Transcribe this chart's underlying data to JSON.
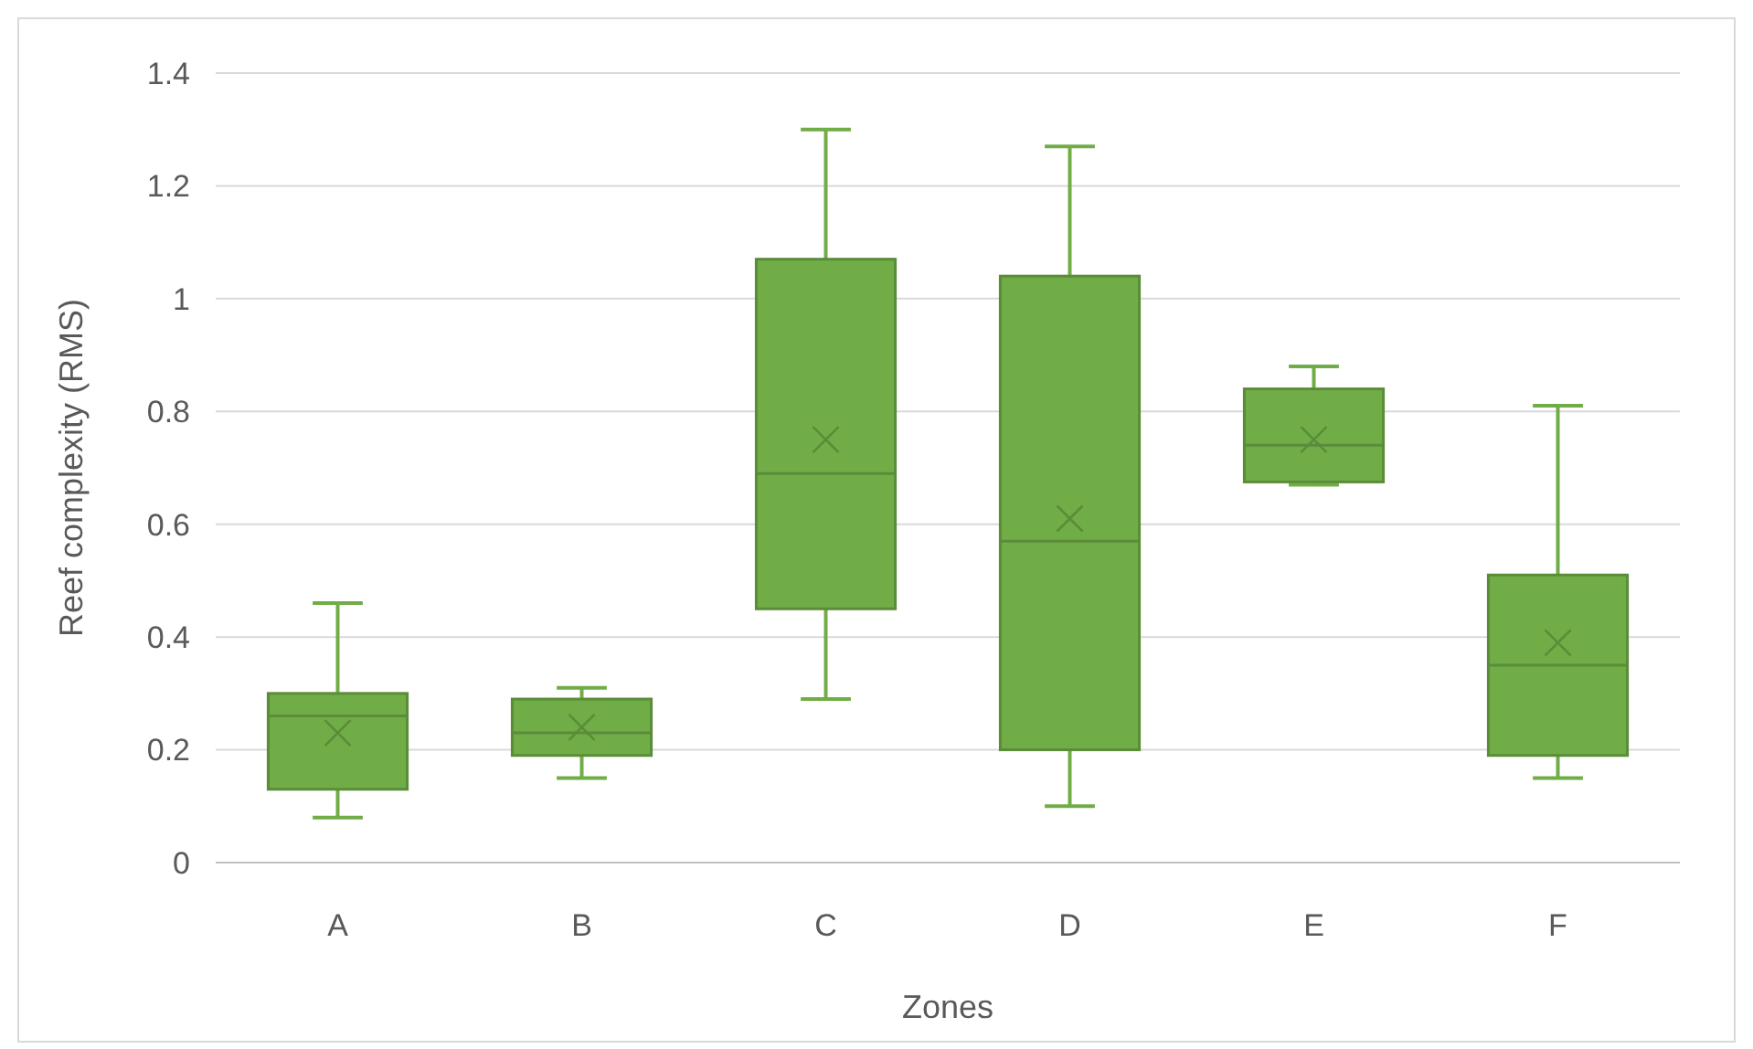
{
  "chart_data": {
    "type": "box",
    "xlabel": "Zones",
    "ylabel": "Reef complexity (RMS)",
    "categories": [
      "A",
      "B",
      "C",
      "D",
      "E",
      "F"
    ],
    "boxes": [
      {
        "low": 0.08,
        "q1": 0.13,
        "median": 0.26,
        "q3": 0.3,
        "high": 0.46,
        "mean": 0.23
      },
      {
        "low": 0.15,
        "q1": 0.19,
        "median": 0.23,
        "q3": 0.29,
        "high": 0.31,
        "mean": 0.24
      },
      {
        "low": 0.29,
        "q1": 0.45,
        "median": 0.69,
        "q3": 1.07,
        "high": 1.3,
        "mean": 0.75
      },
      {
        "low": 0.1,
        "q1": 0.2,
        "median": 0.57,
        "q3": 1.04,
        "high": 1.27,
        "mean": 0.61
      },
      {
        "low": 0.67,
        "q1": 0.675,
        "median": 0.74,
        "q3": 0.84,
        "high": 0.88,
        "mean": 0.75
      },
      {
        "low": 0.15,
        "q1": 0.19,
        "median": 0.35,
        "q3": 0.51,
        "high": 0.81,
        "mean": 0.39
      }
    ],
    "color": "#70ad47",
    "ylim": [
      0,
      1.4
    ],
    "yticks": [
      0,
      0.2,
      0.4,
      0.6,
      0.8,
      1,
      1.2,
      1.4
    ],
    "grid": "y",
    "marker": "cross"
  }
}
